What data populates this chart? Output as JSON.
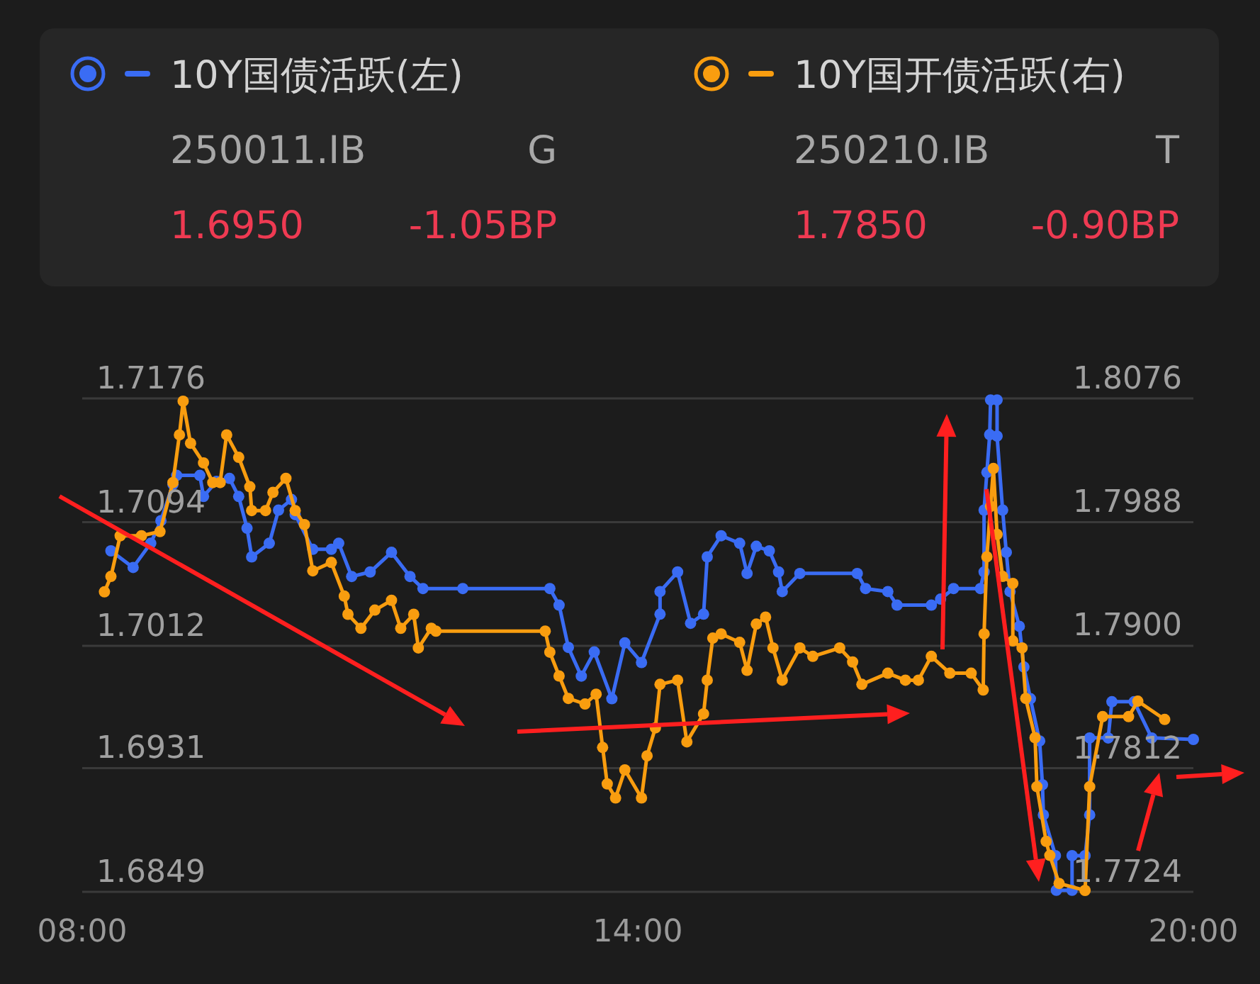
{
  "chart_data": {
    "type": "line",
    "marker": "circle",
    "grid": "y",
    "legend": "top",
    "annotations": [
      "250011.IB",
      "G",
      "1.6950",
      "-1.05BP",
      "250210.IB",
      "T",
      "1.7850",
      "-0.90BP"
    ],
    "xlim": [
      8,
      20
    ],
    "xticks": [
      {
        "value": 8,
        "label": "08:00"
      },
      {
        "value": 14,
        "label": "14:00"
      },
      {
        "value": 20,
        "label": "20:00"
      }
    ],
    "ylim": [
      1.6849,
      1.7176
    ],
    "yticks": [
      1.6849,
      1.6931,
      1.7012,
      1.7094,
      1.7176
    ],
    "y2lim": [
      1.7724,
      1.8076
    ],
    "y2ticks": [
      1.7724,
      1.7812,
      {
        "value": 1.79,
        "label": "1.7900"
      },
      1.7988,
      1.8076
    ],
    "series": [
      {
        "name": "10Y国债活跃(左)",
        "color": "#3a6cf4",
        "x": [
          8.31,
          8.55,
          8.74,
          8.85,
          8.98,
          9.02,
          9.27,
          9.31,
          9.45,
          9.59,
          9.69,
          9.78,
          9.83,
          10.02,
          10.12,
          10.26,
          10.3,
          10.49,
          10.69,
          10.77,
          10.91,
          11.11,
          11.34,
          11.54,
          11.68,
          12.11,
          13.05,
          13.15,
          13.25,
          13.39,
          13.53,
          13.72,
          13.86,
          14.04,
          14.24,
          14.24,
          14.43,
          14.57,
          14.71,
          14.75,
          14.9,
          15.1,
          15.18,
          15.28,
          15.42,
          15.52,
          15.56,
          15.75,
          16.37,
          16.46,
          16.7,
          16.8,
          17.17,
          17.27,
          17.41,
          17.7,
          17.74,
          17.74,
          17.77,
          17.8,
          17.81,
          17.88,
          17.88,
          17.94,
          17.98,
          18.02,
          18.12,
          18.17,
          18.24,
          18.34,
          18.37,
          18.38,
          18.51,
          18.52,
          18.69,
          18.69,
          18.83,
          18.88,
          18.88,
          19.08,
          19.12,
          19.36,
          19.55,
          20.0
        ],
        "values": [
          1.7075,
          1.7064,
          1.708,
          1.7095,
          1.7119,
          1.7125,
          1.7125,
          1.7111,
          1.7121,
          1.7123,
          1.7111,
          1.709,
          1.7071,
          1.708,
          1.7102,
          1.7109,
          1.7099,
          1.7076,
          1.7076,
          1.708,
          1.7058,
          1.7061,
          1.7074,
          1.7058,
          1.705,
          1.705,
          1.705,
          1.7039,
          1.7011,
          1.6992,
          1.7008,
          1.6977,
          1.7014,
          1.7001,
          1.7033,
          1.7048,
          1.7061,
          1.7027,
          1.7033,
          1.7071,
          1.7085,
          1.708,
          1.706,
          1.7078,
          1.7075,
          1.7061,
          1.7048,
          1.706,
          1.706,
          1.705,
          1.7048,
          1.7039,
          1.7039,
          1.7043,
          1.705,
          1.705,
          1.7061,
          1.7102,
          1.7127,
          1.7152,
          1.7175,
          1.7175,
          1.7151,
          1.7102,
          1.7074,
          1.7048,
          1.7025,
          1.6998,
          1.6977,
          1.6949,
          1.692,
          1.69,
          1.6873,
          1.685,
          1.685,
          1.6873,
          1.6873,
          1.69,
          1.6951,
          1.6951,
          1.6975,
          1.6975,
          1.6951,
          1.695
        ]
      },
      {
        "name": "10Y国开债活跃(右)",
        "color": "#f99d0f",
        "axis": "y2",
        "x": [
          8.24,
          8.31,
          8.41,
          8.64,
          8.84,
          8.98,
          9.05,
          9.09,
          9.17,
          9.31,
          9.41,
          9.49,
          9.56,
          9.69,
          9.81,
          9.83,
          9.98,
          10.06,
          10.2,
          10.3,
          10.4,
          10.49,
          10.69,
          10.83,
          10.87,
          11.01,
          11.16,
          11.34,
          11.44,
          11.58,
          11.63,
          11.77,
          11.82,
          13.0,
          13.05,
          13.15,
          13.25,
          13.43,
          13.55,
          13.62,
          13.67,
          13.76,
          13.86,
          14.04,
          14.1,
          14.19,
          14.24,
          14.43,
          14.53,
          14.71,
          14.75,
          14.81,
          14.9,
          15.1,
          15.18,
          15.28,
          15.38,
          15.46,
          15.56,
          15.75,
          15.89,
          16.18,
          16.32,
          16.42,
          16.7,
          16.89,
          17.03,
          17.17,
          17.37,
          17.6,
          17.73,
          17.74,
          17.77,
          17.81,
          17.84,
          17.88,
          17.94,
          18.05,
          18.05,
          18.15,
          18.19,
          18.29,
          18.31,
          18.41,
          18.45,
          18.55,
          18.83,
          18.88,
          19.02,
          19.3,
          19.4,
          19.69
        ],
        "values": [
          1.7938,
          1.7949,
          1.7978,
          1.7978,
          1.7981,
          1.8016,
          1.805,
          1.8074,
          1.8044,
          1.803,
          1.8016,
          1.8016,
          1.805,
          1.8034,
          1.8013,
          1.7996,
          1.7996,
          1.8009,
          1.8019,
          1.7996,
          1.7986,
          1.7953,
          1.7959,
          1.7935,
          1.7922,
          1.7912,
          1.7925,
          1.7932,
          1.7912,
          1.7922,
          1.7898,
          1.7912,
          1.791,
          1.791,
          1.7895,
          1.7878,
          1.7862,
          1.7858,
          1.7865,
          1.7827,
          1.7801,
          1.7791,
          1.7811,
          1.7791,
          1.7821,
          1.7841,
          1.7872,
          1.7875,
          1.7831,
          1.7851,
          1.7875,
          1.7905,
          1.7908,
          1.7902,
          1.7882,
          1.7915,
          1.792,
          1.7898,
          1.7875,
          1.7898,
          1.7892,
          1.7898,
          1.7888,
          1.7872,
          1.788,
          1.7875,
          1.7875,
          1.7892,
          1.788,
          1.788,
          1.7868,
          1.7908,
          1.7963,
          1.7999,
          1.8026,
          1.7979,
          1.7949,
          1.7944,
          1.7903,
          1.7898,
          1.7862,
          1.7834,
          1.7799,
          1.776,
          1.775,
          1.773,
          1.7725,
          1.7799,
          1.7849,
          1.7849,
          1.786,
          1.7847
        ]
      }
    ]
  }
}
